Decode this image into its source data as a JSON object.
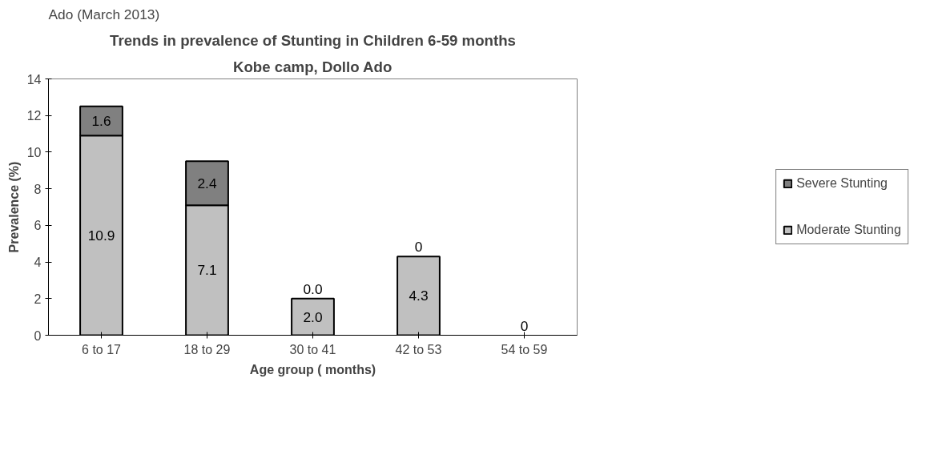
{
  "chart_data": {
    "type": "bar",
    "title": "Trends in prevalence of Stunting in Children 6-59 months",
    "subtitle": "Kobe camp, Dollo Ado",
    "annotations": [
      "Ado (March 2013)"
    ],
    "xlabel": "Age group ( months)",
    "ylabel": "Prevalence (%)",
    "categories": [
      "6 to 17",
      "18 to 29",
      "30 to 41",
      "42 to 53",
      "54 to 59"
    ],
    "stacked": true,
    "series": [
      {
        "name": "Moderate Stunting",
        "color": "#c0c0c0",
        "values": [
          10.9,
          7.1,
          2.0,
          4.3,
          0
        ],
        "value_labels": [
          "10.9",
          "7.1",
          "2.0",
          "4.3",
          "0"
        ]
      },
      {
        "name": "Severe Stunting",
        "color": "#808080",
        "values": [
          1.6,
          2.4,
          0.0,
          0,
          null
        ],
        "value_labels": [
          "1.6",
          "2.4",
          "0.0",
          "0",
          null
        ]
      }
    ],
    "ylim": [
      0,
      14
    ],
    "yticks": [
      0,
      2,
      4,
      6,
      8,
      10,
      12,
      14
    ],
    "grid": false,
    "legend": "right"
  }
}
